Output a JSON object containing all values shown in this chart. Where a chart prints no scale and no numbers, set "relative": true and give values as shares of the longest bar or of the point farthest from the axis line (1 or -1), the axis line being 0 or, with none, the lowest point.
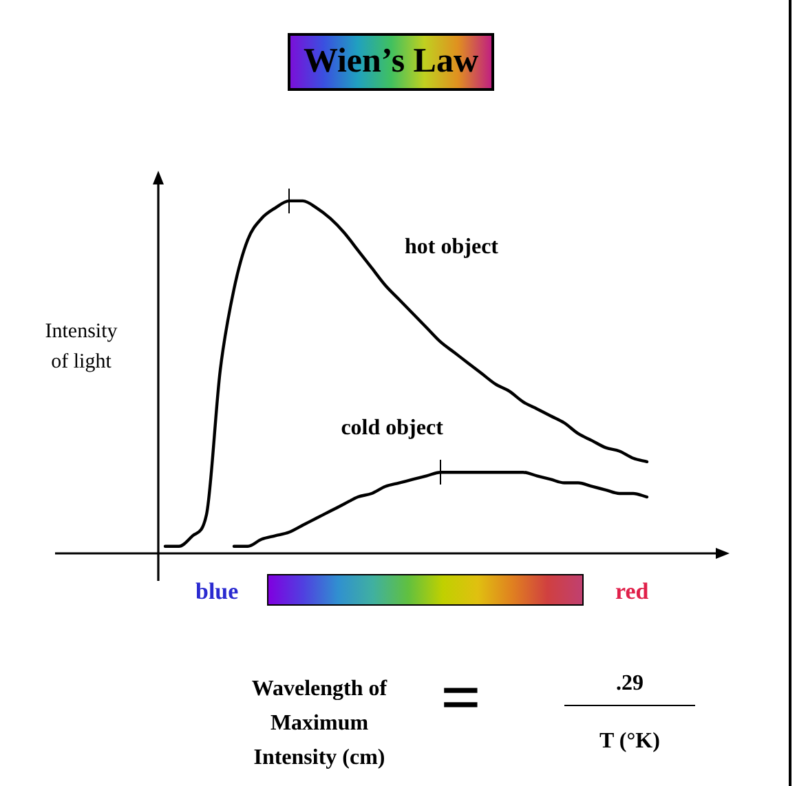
{
  "chart_data": {
    "type": "line",
    "title": "Wien’s Law",
    "ylabel": "Intensity of light",
    "relative": true,
    "legend": false,
    "grid": false,
    "marker": "none",
    "line_style": "solid",
    "categories": [
      null,
      null,
      null,
      null,
      null,
      null,
      null,
      null,
      null,
      null,
      null,
      null,
      null,
      null,
      null,
      null,
      null,
      null,
      null,
      null,
      null,
      null,
      null,
      null,
      null,
      null,
      null,
      null,
      null,
      null,
      null,
      null,
      null,
      null,
      null,
      null,
      null,
      null,
      null,
      null,
      null,
      null,
      null,
      null,
      null,
      null,
      null,
      null,
      null
    ],
    "series": [
      {
        "name": "hot object",
        "color": "#000000",
        "values": [
          null,
          null,
          null,
          null,
          null,
          null,
          null,
          null,
          0.02,
          0.02,
          0.05,
          0.11,
          0.52,
          0.75,
          0.89,
          0.95,
          0.98,
          1.0,
          1.0,
          0.98,
          0.95,
          0.91,
          0.86,
          0.81,
          0.76,
          0.72,
          0.68,
          0.64,
          0.6,
          0.57,
          0.54,
          0.51,
          0.48,
          0.46,
          0.43,
          0.41,
          0.39,
          0.37,
          0.34,
          0.32,
          0.3,
          0.29,
          0.27,
          0.26,
          null,
          null,
          null,
          null,
          null
        ]
      },
      {
        "name": "cold object",
        "color": "#000000",
        "values": [
          null,
          null,
          null,
          null,
          null,
          null,
          null,
          null,
          null,
          null,
          null,
          null,
          null,
          0.02,
          0.02,
          0.04,
          0.05,
          0.06,
          0.08,
          0.1,
          0.12,
          0.14,
          0.16,
          0.17,
          0.19,
          0.2,
          0.21,
          0.22,
          0.23,
          0.23,
          0.23,
          0.23,
          0.23,
          0.23,
          0.23,
          0.22,
          0.21,
          0.2,
          0.2,
          0.19,
          0.18,
          0.17,
          0.17,
          0.16,
          null,
          null,
          null,
          null,
          null
        ]
      }
    ],
    "annotations": [
      "blue",
      "red",
      "Wavelength of Maximum Intensity (cm)",
      "=",
      ".29",
      "T (°K)"
    ]
  }
}
